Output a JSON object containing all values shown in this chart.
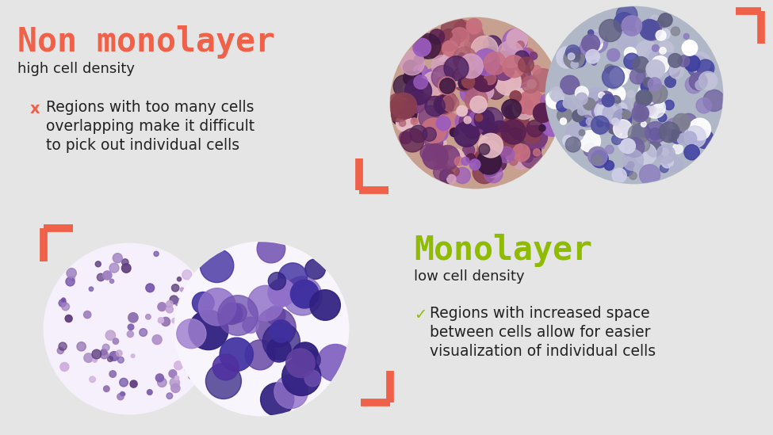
{
  "bg_top": "#e5e5e5",
  "bg_bottom": "#ffffff",
  "top_title": "Non monolayer",
  "top_title_color": "#f0614a",
  "top_subtitle": "high cell density",
  "top_subtitle_color": "#222222",
  "top_bullet_mark": "x",
  "top_bullet_color": "#f0614a",
  "top_bullet_text_line1": "Regions with too many cells",
  "top_bullet_text_line2": "overlapping make it difficult",
  "top_bullet_text_line3": "to pick out individual cells",
  "top_bullet_text_color": "#222222",
  "bottom_title": "Monolayer",
  "bottom_title_color": "#8fbc00",
  "bottom_subtitle": "low cell density",
  "bottom_subtitle_color": "#222222",
  "bottom_bullet_mark": "✓",
  "bottom_bullet_color": "#8fbc00",
  "bottom_bullet_text_line1": "Regions with increased space",
  "bottom_bullet_text_line2": "between cells allow for easier",
  "bottom_bullet_text_line3": "visualization of individual cells",
  "bottom_bullet_text_color": "#222222",
  "bracket_color": "#f0614a",
  "bracket_lw": 7
}
